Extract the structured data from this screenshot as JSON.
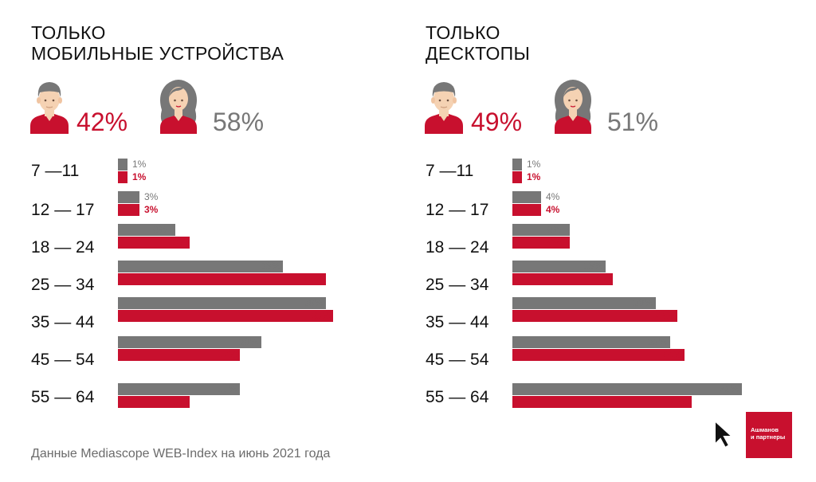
{
  "colors": {
    "accent": "#c8102e",
    "male_bar": "#777777",
    "female_bar": "#c8102e",
    "female_share_text": "#777777",
    "male_share_text": "#c8102e"
  },
  "panels": [
    {
      "title_line1": "ТОЛЬКО",
      "title_line2": "МОБИЛЬНЫЕ УСТРОЙСТВА",
      "male_share": "42%",
      "female_share": "58%",
      "age_groups": [
        {
          "label": "7 —11",
          "male": "1%",
          "female": "1%"
        },
        {
          "label": "12 — 17",
          "male": "3%",
          "female": "3%"
        },
        {
          "label": "18 — 24",
          "male": "8%",
          "female": "10%"
        },
        {
          "label": "25 — 34",
          "male": "23%",
          "female": "29%"
        },
        {
          "label": "35 — 44",
          "male": "29%",
          "female": "30%"
        },
        {
          "label": "45 — 54",
          "male": "20%",
          "female": "17%"
        },
        {
          "label": "55 — 64",
          "male": "17%",
          "female": "10%"
        }
      ]
    },
    {
      "title_line1": "ТОЛЬКО",
      "title_line2": "ДЕСКТОПЫ",
      "male_share": "49%",
      "female_share": "51%",
      "age_groups": [
        {
          "label": "7 —11",
          "male": "1%",
          "female": "1%"
        },
        {
          "label": "12 — 17",
          "male": "4%",
          "female": "4%"
        },
        {
          "label": "18 — 24",
          "male": "8%",
          "female": "8%"
        },
        {
          "label": "25 — 34",
          "male": "13%",
          "female": "14%"
        },
        {
          "label": "35 — 44",
          "male": "20%",
          "female": "23%"
        },
        {
          "label": "45 — 54",
          "male": "22%",
          "female": "24%"
        },
        {
          "label": "55 — 64",
          "male": "32%",
          "female": "25%"
        }
      ]
    }
  ],
  "chart_data": [
    {
      "type": "bar",
      "orientation": "horizontal",
      "title": "ТОЛЬКО МОБИЛЬНЫЕ УСТРОЙСТВА",
      "categories": [
        "7 —11",
        "12 — 17",
        "18 — 24",
        "25 — 34",
        "35 — 44",
        "45 — 54",
        "55 — 64"
      ],
      "series": [
        {
          "values": [
            1,
            3,
            8,
            23,
            29,
            20,
            17
          ],
          "color": "#777777"
        },
        {
          "values": [
            1,
            3,
            10,
            29,
            30,
            17,
            10
          ],
          "color": "#c8102e"
        }
      ],
      "unit": "%",
      "grid": false
    },
    {
      "type": "bar",
      "orientation": "horizontal",
      "title": "ТОЛЬКО ДЕСКТОПЫ",
      "categories": [
        "7 —11",
        "12 — 17",
        "18 — 24",
        "25 — 34",
        "35 — 44",
        "45 — 54",
        "55 — 64"
      ],
      "series": [
        {
          "values": [
            1,
            4,
            8,
            13,
            20,
            22,
            32
          ],
          "color": "#777777"
        },
        {
          "values": [
            1,
            4,
            8,
            14,
            23,
            24,
            25
          ],
          "color": "#c8102e"
        }
      ],
      "unit": "%",
      "grid": false
    }
  ],
  "footnote": "Данные Mediascope WEB-Index на июнь 2021 года",
  "logo": {
    "line1": "Ашманов",
    "line2": "и партнеры"
  },
  "icons": {
    "male": "man-avatar-icon",
    "female": "woman-avatar-icon",
    "cursor": "cursor-arrow-icon"
  }
}
